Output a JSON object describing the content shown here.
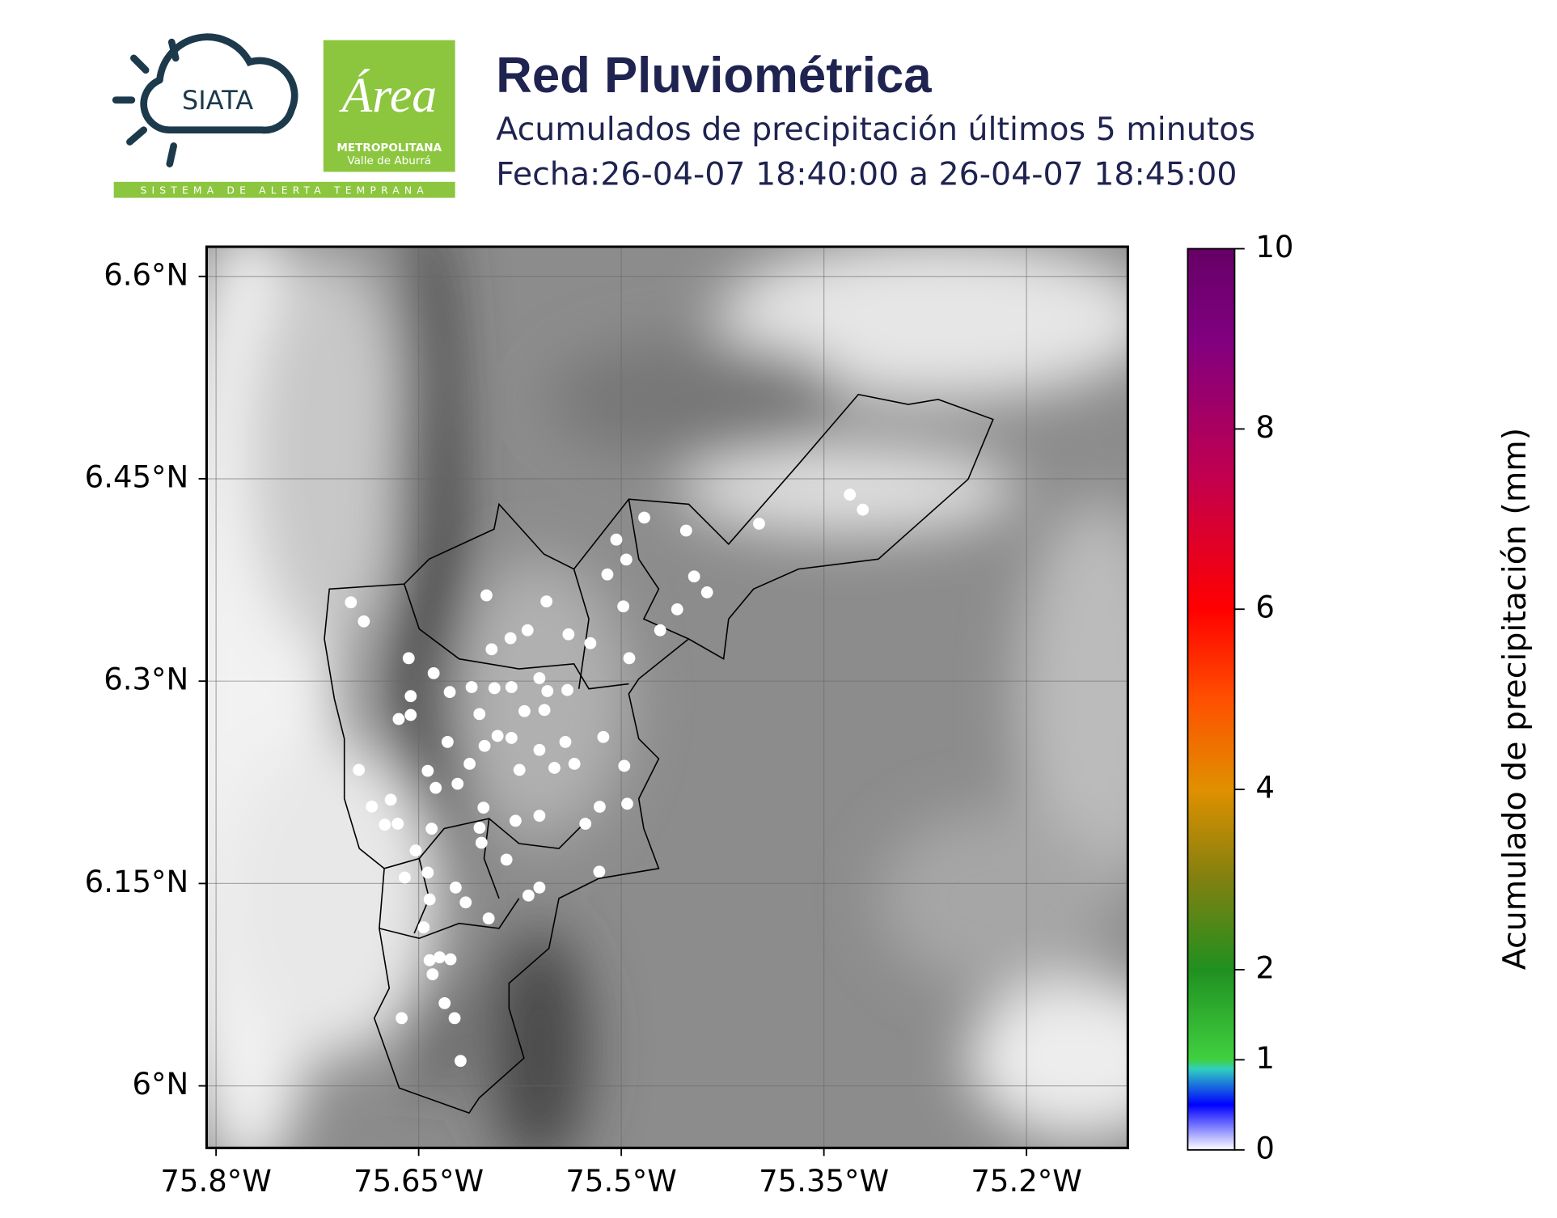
{
  "logos": {
    "siata": "SIATA",
    "area": "Área",
    "metropolitana": "METROPOLITANA",
    "valle": "Valle de Aburrá",
    "sistema": "SISTEMA DE ALERTA TEMPRANA"
  },
  "chart_data": {
    "type": "scatter",
    "title": "Red Pluviométrica",
    "subtitle": "Acumulados de precipitación últimos 5 minutos",
    "date": "Fecha:26-04-07 18:40:00 a 26-04-07 18:45:00",
    "xlim": [
      -75.807,
      -75.125
    ],
    "ylim": [
      5.954,
      6.622
    ],
    "xticks": [
      {
        "value": -75.8,
        "label": "75.8°W"
      },
      {
        "value": -75.65,
        "label": "75.65°W"
      },
      {
        "value": -75.5,
        "label": "75.5°W"
      },
      {
        "value": -75.35,
        "label": "75.35°W"
      },
      {
        "value": -75.2,
        "label": "75.2°W"
      }
    ],
    "yticks": [
      {
        "value": 6.6,
        "label": "6.6°N"
      },
      {
        "value": 6.45,
        "label": "6.45°N"
      },
      {
        "value": 6.3,
        "label": "6.3°N"
      },
      {
        "value": 6.15,
        "label": "6.15°N"
      },
      {
        "value": 6.0,
        "label": "6°N"
      }
    ],
    "grid": true,
    "color": "#ffffff",
    "x": [
      -75.7002,
      -75.6906,
      -75.6574,
      -75.6389,
      -75.5998,
      -75.5554,
      -75.5037,
      -75.483,
      -75.452,
      -75.398,
      -75.3308,
      -75.3212,
      -75.5103,
      -75.4963,
      -75.4985,
      -75.4461,
      -75.4365,
      -75.4586,
      -75.4712,
      -75.4941,
      -75.5229,
      -75.5391,
      -75.5694,
      -75.582,
      -75.596,
      -75.6108,
      -75.627,
      -75.6559,
      -75.6648,
      -75.6559,
      -75.5939,
      -75.5813,
      -75.5606,
      -75.5547,
      -75.5717,
      -75.5569,
      -75.5399,
      -75.605,
      -75.6286,
      -75.6123,
      -75.6012,
      -75.5916,
      -75.5813,
      -75.5754,
      -75.5606,
      -75.5495,
      -75.5414,
      -75.5347,
      -75.5133,
      -75.4978,
      -75.516,
      -75.4956,
      -75.5266,
      -75.5606,
      -75.5783,
      -75.602,
      -75.6212,
      -75.6433,
      -75.6374,
      -75.6707,
      -75.6847,
      -75.6943,
      -75.6751,
      -75.6655,
      -75.6404,
      -75.6522,
      -75.6603,
      -75.6433,
      -75.6419,
      -75.6226,
      -75.6152,
      -75.5982,
      -75.6049,
      -75.6035,
      -75.585,
      -75.5687,
      -75.5606,
      -75.5163,
      -75.6463,
      -75.6419,
      -75.6345,
      -75.6264,
      -75.6397,
      -75.6308,
      -75.6234,
      -75.6626,
      -75.619
    ],
    "y": [
      6.3584,
      6.3443,
      6.317,
      6.3059,
      6.3636,
      6.3591,
      6.4049,
      6.4212,
      6.4116,
      6.4167,
      6.4382,
      6.4271,
      6.3791,
      6.3901,
      6.3554,
      6.3776,
      6.3658,
      6.3532,
      6.3377,
      6.317,
      6.3281,
      6.3347,
      6.3377,
      6.3318,
      6.3236,
      6.2956,
      6.2919,
      6.2889,
      6.2719,
      6.2749,
      6.2948,
      6.2956,
      6.3022,
      6.2926,
      6.2778,
      6.2786,
      6.2934,
      6.2756,
      6.2549,
      6.2387,
      6.252,
      6.2594,
      6.2579,
      6.2342,
      6.249,
      6.2357,
      6.2549,
      6.2387,
      6.2586,
      6.2372,
      6.2069,
      6.2091,
      6.1943,
      6.2002,
      6.1965,
      6.2062,
      6.2239,
      6.2335,
      6.2209,
      6.2121,
      6.207,
      6.2342,
      6.1936,
      6.1943,
      6.1906,
      6.1744,
      6.1544,
      6.1581,
      6.1382,
      6.147,
      6.136,
      6.1241,
      6.1913,
      6.1802,
      6.1677,
      6.1411,
      6.147,
      6.1588,
      6.1175,
      6.0931,
      6.0953,
      6.0938,
      6.0827,
      6.0613,
      6.0502,
      6.0502,
      6.0185
    ],
    "colorbar": {
      "label": "Acumulado de precipitación (mm)",
      "lim": [
        0,
        10
      ],
      "ticks": [
        0,
        1,
        2,
        4,
        6,
        8,
        10
      ]
    }
  }
}
